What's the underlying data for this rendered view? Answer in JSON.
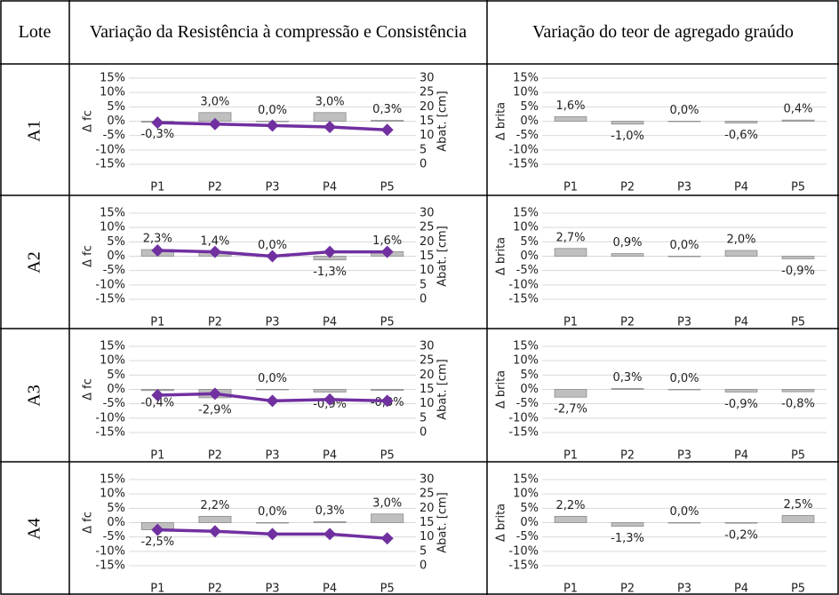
{
  "table": {
    "header": [
      "Lote",
      "Variação da Resistência à compressão e Consistência",
      "Variação do teor de agregado graúdo"
    ],
    "rows": [
      "A1",
      "A2",
      "A3",
      "A4"
    ]
  },
  "chart_data": [
    {
      "type": "combo",
      "y_label": "Δ fc",
      "y2_label": "Abat. [cm]",
      "categories": [
        "P1",
        "P2",
        "P3",
        "P4",
        "P5"
      ],
      "ylim": [
        -15,
        15
      ],
      "yticks": [
        {
          "value": -15,
          "label": "-15%"
        },
        {
          "value": -10,
          "label": "-10%"
        },
        {
          "value": -5,
          "label": "-5%"
        },
        {
          "value": 0,
          "label": "0%"
        },
        {
          "value": 5,
          "label": "5%"
        },
        {
          "value": 10,
          "label": "10%"
        },
        {
          "value": 15,
          "label": "15%"
        }
      ],
      "y2lim": [
        0,
        30
      ],
      "y2ticks": [
        0,
        5,
        10,
        15,
        20,
        25,
        30
      ],
      "grid": true,
      "series": [
        {
          "type": "bar",
          "color": "#bfbfbf",
          "values": [
            -0.3,
            3.0,
            0.0,
            3.0,
            0.3
          ],
          "value_labels": [
            "-0,3%",
            "3,0%",
            "0,0%",
            "3,0%",
            "0,3%"
          ]
        },
        {
          "type": "line",
          "axis": "y2",
          "color": "#7030a0",
          "values": [
            14.5,
            14,
            13.5,
            13,
            12
          ]
        }
      ]
    },
    {
      "type": "bar",
      "y_label": "Δ brita",
      "categories": [
        "P1",
        "P2",
        "P3",
        "P4",
        "P5"
      ],
      "ylim": [
        -15,
        15
      ],
      "yticks": [
        {
          "value": -15,
          "label": "-15%"
        },
        {
          "value": -10,
          "label": "-10%"
        },
        {
          "value": -5,
          "label": "-5%"
        },
        {
          "value": 0,
          "label": "0%"
        },
        {
          "value": 5,
          "label": "5%"
        },
        {
          "value": 10,
          "label": "10%"
        },
        {
          "value": 15,
          "label": "15%"
        }
      ],
      "grid": true,
      "series": [
        {
          "type": "bar",
          "color": "#bfbfbf",
          "values": [
            1.6,
            -1.0,
            0.0,
            -0.6,
            0.4
          ],
          "value_labels": [
            "1,6%",
            "-1,0%",
            "0,0%",
            "-0,6%",
            "0,4%"
          ]
        }
      ]
    },
    {
      "type": "combo",
      "y_label": "Δ fc",
      "y2_label": "Abat. [cm]",
      "categories": [
        "P1",
        "P2",
        "P3",
        "P4",
        "P5"
      ],
      "ylim": [
        -15,
        15
      ],
      "yticks": [
        {
          "value": -15,
          "label": "-15%"
        },
        {
          "value": -10,
          "label": "-10%"
        },
        {
          "value": -5,
          "label": "-5%"
        },
        {
          "value": 0,
          "label": "0%"
        },
        {
          "value": 5,
          "label": "5%"
        },
        {
          "value": 10,
          "label": "10%"
        },
        {
          "value": 15,
          "label": "15%"
        }
      ],
      "y2lim": [
        0,
        30
      ],
      "y2ticks": [
        0,
        5,
        10,
        15,
        20,
        25,
        30
      ],
      "grid": true,
      "series": [
        {
          "type": "bar",
          "color": "#bfbfbf",
          "values": [
            2.3,
            1.4,
            0.0,
            -1.3,
            1.6
          ],
          "value_labels": [
            "2,3%",
            "1,4%",
            "0,0%",
            "-1,3%",
            "1,6%"
          ]
        },
        {
          "type": "line",
          "axis": "y2",
          "color": "#7030a0",
          "values": [
            17,
            16.5,
            15,
            16.5,
            16.5
          ]
        }
      ]
    },
    {
      "type": "bar",
      "y_label": "Δ brita",
      "categories": [
        "P1",
        "P2",
        "P3",
        "P4",
        "P5"
      ],
      "ylim": [
        -15,
        15
      ],
      "yticks": [
        {
          "value": -15,
          "label": "-15%"
        },
        {
          "value": -10,
          "label": "-10%"
        },
        {
          "value": -5,
          "label": "-5%"
        },
        {
          "value": 0,
          "label": "0%"
        },
        {
          "value": 5,
          "label": "5%"
        },
        {
          "value": 10,
          "label": "10%"
        },
        {
          "value": 15,
          "label": "15%"
        }
      ],
      "grid": true,
      "series": [
        {
          "type": "bar",
          "color": "#bfbfbf",
          "values": [
            2.7,
            0.9,
            0.0,
            2.0,
            -0.9
          ],
          "value_labels": [
            "2,7%",
            "0,9%",
            "0,0%",
            "2,0%",
            "-0,9%"
          ]
        }
      ]
    },
    {
      "type": "combo",
      "y_label": "Δ fc",
      "y2_label": "Abat. [cm]",
      "categories": [
        "P1",
        "P2",
        "P3",
        "P4",
        "P5"
      ],
      "ylim": [
        -15,
        15
      ],
      "yticks": [
        {
          "value": -15,
          "label": "-15%"
        },
        {
          "value": -10,
          "label": "-10%"
        },
        {
          "value": -5,
          "label": "-5%"
        },
        {
          "value": 0,
          "label": "0%"
        },
        {
          "value": 5,
          "label": "5%"
        },
        {
          "value": 10,
          "label": "10%"
        },
        {
          "value": 15,
          "label": "15%"
        }
      ],
      "y2lim": [
        0,
        30
      ],
      "y2ticks": [
        0,
        5,
        10,
        15,
        20,
        25,
        30
      ],
      "grid": true,
      "series": [
        {
          "type": "bar",
          "color": "#bfbfbf",
          "values": [
            -0.4,
            -2.9,
            0.0,
            -0.9,
            -0.3
          ],
          "value_labels": [
            "-0,4%",
            "-2,9%",
            "0,0%",
            "-0,9%",
            "-0,3%"
          ]
        },
        {
          "type": "line",
          "axis": "y2",
          "color": "#7030a0",
          "values": [
            13,
            13.5,
            11,
            11.5,
            11
          ]
        }
      ]
    },
    {
      "type": "bar",
      "y_label": "Δ brita",
      "categories": [
        "P1",
        "P2",
        "P3",
        "P4",
        "P5"
      ],
      "ylim": [
        -15,
        15
      ],
      "yticks": [
        {
          "value": -15,
          "label": "-15%"
        },
        {
          "value": -10,
          "label": "-10%"
        },
        {
          "value": -5,
          "label": "-5%"
        },
        {
          "value": 0,
          "label": "0%"
        },
        {
          "value": 5,
          "label": "5%"
        },
        {
          "value": 10,
          "label": "10%"
        },
        {
          "value": 15,
          "label": "15%"
        }
      ],
      "grid": true,
      "series": [
        {
          "type": "bar",
          "color": "#bfbfbf",
          "values": [
            -2.7,
            0.3,
            0.0,
            -0.9,
            -0.8
          ],
          "value_labels": [
            "-2,7%",
            "0,3%",
            "0,0%",
            "-0,9%",
            "-0,8%"
          ]
        }
      ]
    },
    {
      "type": "combo",
      "y_label": "Δ fc",
      "y2_label": "Abat. [cm]",
      "categories": [
        "P1",
        "P2",
        "P3",
        "P4",
        "P5"
      ],
      "ylim": [
        -15,
        15
      ],
      "yticks": [
        {
          "value": -15,
          "label": "-15%"
        },
        {
          "value": -10,
          "label": "-10%"
        },
        {
          "value": -5,
          "label": "-5%"
        },
        {
          "value": 0,
          "label": "0%"
        },
        {
          "value": 5,
          "label": "5%"
        },
        {
          "value": 10,
          "label": "10%"
        },
        {
          "value": 15,
          "label": "15%"
        }
      ],
      "y2lim": [
        0,
        30
      ],
      "y2ticks": [
        0,
        5,
        10,
        15,
        20,
        25,
        30
      ],
      "grid": true,
      "series": [
        {
          "type": "bar",
          "color": "#bfbfbf",
          "values": [
            -2.5,
            2.2,
            0.0,
            0.3,
            3.0
          ],
          "value_labels": [
            "-2,5%",
            "2,2%",
            "0,0%",
            "0,3%",
            "3,0%"
          ]
        },
        {
          "type": "line",
          "axis": "y2",
          "color": "#7030a0",
          "values": [
            12.5,
            12,
            11,
            11,
            9.5
          ]
        }
      ]
    },
    {
      "type": "bar",
      "y_label": "Δ brita",
      "categories": [
        "P1",
        "P2",
        "P3",
        "P4",
        "P5"
      ],
      "ylim": [
        -15,
        15
      ],
      "yticks": [
        {
          "value": -15,
          "label": "-15%"
        },
        {
          "value": -10,
          "label": "-10%"
        },
        {
          "value": -5,
          "label": "-5%"
        },
        {
          "value": 0,
          "label": "0%"
        },
        {
          "value": 5,
          "label": "5%"
        },
        {
          "value": 10,
          "label": "10%"
        },
        {
          "value": 15,
          "label": "15%"
        }
      ],
      "grid": true,
      "series": [
        {
          "type": "bar",
          "color": "#bfbfbf",
          "values": [
            2.2,
            -1.3,
            0.0,
            -0.2,
            2.5
          ],
          "value_labels": [
            "2,2%",
            "-1,3%",
            "0,0%",
            "-0,2%",
            "2,5%"
          ]
        }
      ]
    }
  ]
}
